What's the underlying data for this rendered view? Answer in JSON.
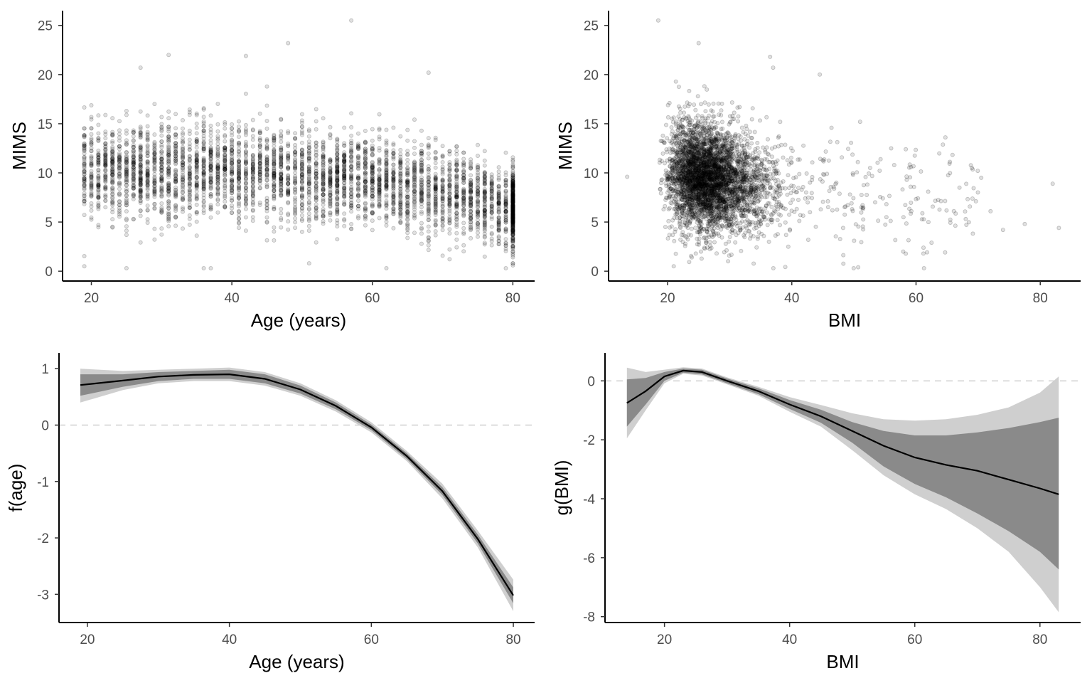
{
  "chart_data": [
    {
      "type": "scatter",
      "xlabel": "Age (years)",
      "ylabel": "MIMS",
      "xlim": [
        15.9,
        83.1
      ],
      "ylim": [
        -1.0,
        26.5
      ],
      "xticks": [
        20,
        40,
        60,
        80
      ],
      "yticks": [
        0,
        5,
        10,
        15,
        20,
        25
      ],
      "x_range": [
        19,
        80
      ],
      "n_points": 4200,
      "point_color": "#000000",
      "point_alpha": 0.15,
      "profile": {
        "age": [
          19,
          30,
          40,
          50,
          60,
          70,
          80
        ],
        "mean_mims": [
          10.2,
          10.1,
          10.3,
          10.0,
          9.2,
          8.0,
          6.5
        ],
        "sd_mims": [
          2.4,
          2.4,
          2.3,
          2.3,
          2.3,
          2.2,
          2.1
        ]
      },
      "outliers": [
        {
          "x": 57,
          "y": 25.5
        },
        {
          "x": 48,
          "y": 23.2
        },
        {
          "x": 31,
          "y": 22.0
        },
        {
          "x": 42,
          "y": 21.9
        },
        {
          "x": 27,
          "y": 20.7
        },
        {
          "x": 68,
          "y": 20.2
        },
        {
          "x": 19,
          "y": 0.5
        },
        {
          "x": 25,
          "y": 0.3
        },
        {
          "x": 36,
          "y": 0.3
        },
        {
          "x": 37,
          "y": 0.3
        },
        {
          "x": 51,
          "y": 0.8
        },
        {
          "x": 80,
          "y": 0.8
        }
      ],
      "grid": false,
      "legend": "none"
    },
    {
      "type": "scatter",
      "xlabel": "BMI",
      "ylabel": "MIMS",
      "xlim": [
        10.5,
        86.5
      ],
      "ylim": [
        -1.0,
        26.5
      ],
      "xticks": [
        20,
        40,
        60,
        80
      ],
      "yticks": [
        0,
        5,
        10,
        15,
        20,
        25
      ],
      "n_points": 4200,
      "point_color": "#000000",
      "point_alpha": 0.15,
      "bmi_center": 27,
      "mims_center": 9.5,
      "outliers": [
        {
          "x": 18.5,
          "y": 25.5
        },
        {
          "x": 25,
          "y": 23.2
        },
        {
          "x": 36.5,
          "y": 21.8
        },
        {
          "x": 37,
          "y": 20.7
        },
        {
          "x": 44.5,
          "y": 20.0
        },
        {
          "x": 51,
          "y": 15.2
        },
        {
          "x": 56,
          "y": 12.5
        },
        {
          "x": 62,
          "y": 5.0
        },
        {
          "x": 62.5,
          "y": 2.9
        },
        {
          "x": 67,
          "y": 8.5
        },
        {
          "x": 68,
          "y": 5.3
        },
        {
          "x": 69,
          "y": 10.5
        },
        {
          "x": 70.5,
          "y": 9.5
        },
        {
          "x": 72,
          "y": 6.1
        },
        {
          "x": 74,
          "y": 4.2
        },
        {
          "x": 77.5,
          "y": 4.8
        },
        {
          "x": 82,
          "y": 8.9
        },
        {
          "x": 83,
          "y": 4.4
        },
        {
          "x": 13.5,
          "y": 9.6
        },
        {
          "x": 21,
          "y": 0.5
        }
      ],
      "grid": false,
      "legend": "none"
    },
    {
      "type": "line",
      "xlabel": "Age (years)",
      "ylabel": "f(age)",
      "xlim": [
        16,
        83
      ],
      "ylim": [
        -3.5,
        1.28
      ],
      "xticks": [
        20,
        40,
        60,
        80
      ],
      "yticks": [
        -3,
        -2,
        -1,
        0,
        1
      ],
      "reference_line": 0,
      "x": [
        19,
        25,
        30,
        35,
        40,
        45,
        50,
        55,
        60,
        65,
        70,
        75,
        80
      ],
      "y": [
        0.71,
        0.79,
        0.86,
        0.89,
        0.9,
        0.82,
        0.63,
        0.34,
        -0.04,
        -0.55,
        -1.17,
        -2.02,
        -3.02
      ],
      "inner_band": {
        "lower": [
          0.52,
          0.68,
          0.78,
          0.82,
          0.82,
          0.74,
          0.56,
          0.28,
          -0.09,
          -0.6,
          -1.24,
          -2.1,
          -3.16
        ],
        "upper": [
          0.9,
          0.9,
          0.94,
          0.96,
          0.98,
          0.9,
          0.7,
          0.4,
          0.01,
          -0.5,
          -1.1,
          -1.94,
          -2.88
        ]
      },
      "outer_band": {
        "lower": [
          0.4,
          0.62,
          0.74,
          0.78,
          0.78,
          0.7,
          0.52,
          0.24,
          -0.13,
          -0.64,
          -1.3,
          -2.17,
          -3.3
        ],
        "upper": [
          1.0,
          0.96,
          0.98,
          1.0,
          1.02,
          0.94,
          0.74,
          0.44,
          0.05,
          -0.46,
          -1.04,
          -1.87,
          -2.74
        ]
      },
      "grid": false,
      "legend": "none"
    },
    {
      "type": "line",
      "xlabel": "BMI",
      "ylabel": "g(BMI)",
      "xlim": [
        10.5,
        86.5
      ],
      "ylim": [
        -8.2,
        0.95
      ],
      "xticks": [
        20,
        40,
        60,
        80
      ],
      "yticks": [
        -8,
        -6,
        -4,
        -2,
        0
      ],
      "reference_line": 0,
      "x": [
        14,
        17,
        20,
        23,
        26,
        30,
        35,
        40,
        45,
        50,
        55,
        60,
        65,
        70,
        75,
        80,
        83
      ],
      "y": [
        -0.75,
        -0.35,
        0.15,
        0.35,
        0.3,
        0.0,
        -0.35,
        -0.8,
        -1.2,
        -1.7,
        -2.2,
        -2.6,
        -2.85,
        -3.05,
        -3.35,
        -3.65,
        -3.85
      ],
      "inner_band": {
        "lower": [
          -1.55,
          -0.8,
          0.0,
          0.28,
          0.22,
          -0.08,
          -0.45,
          -0.95,
          -1.42,
          -2.1,
          -2.9,
          -3.5,
          -3.95,
          -4.5,
          -5.1,
          -5.8,
          -6.4
        ],
        "upper": [
          0.05,
          0.1,
          0.3,
          0.42,
          0.38,
          0.08,
          -0.25,
          -0.65,
          -0.98,
          -1.4,
          -1.7,
          -1.85,
          -1.85,
          -1.75,
          -1.6,
          -1.4,
          -1.25
        ]
      },
      "outer_band": {
        "lower": [
          -1.95,
          -1.0,
          -0.08,
          0.24,
          0.18,
          -0.12,
          -0.5,
          -1.05,
          -1.55,
          -2.35,
          -3.2,
          -3.85,
          -4.35,
          -5.0,
          -5.8,
          -7.0,
          -7.85
        ]
      },
      "outer_band_upper": [
        0.45,
        0.3,
        0.38,
        0.46,
        0.42,
        0.12,
        -0.2,
        -0.55,
        -0.82,
        -1.1,
        -1.3,
        -1.35,
        -1.3,
        -1.15,
        -0.9,
        -0.4,
        0.15
      ],
      "grid": false,
      "legend": "none"
    }
  ]
}
